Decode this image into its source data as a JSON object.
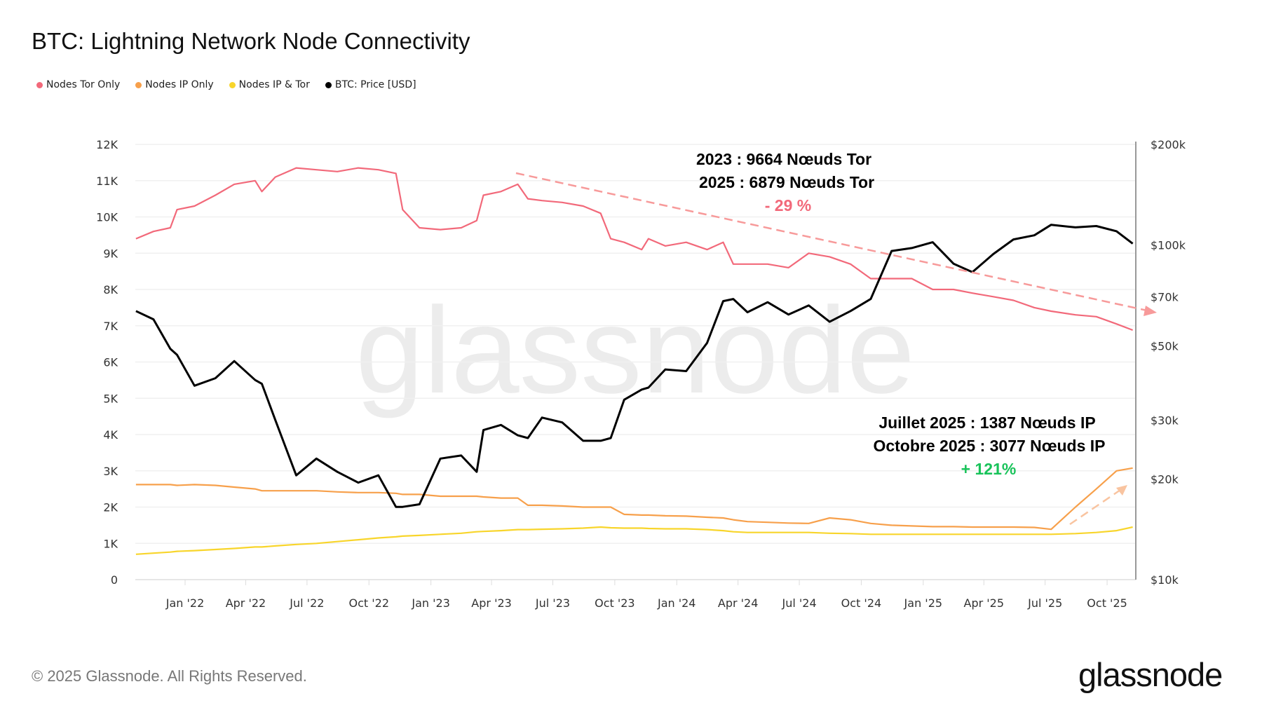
{
  "title": "BTC: Lightning Network Node Connectivity",
  "footer": "© 2025 Glassnode. All Rights Reserved.",
  "logo": "glassnode",
  "watermark": "glassnode",
  "chart_data": {
    "type": "line",
    "title": "BTC: Lightning Network Node Connectivity",
    "legend_position": "top-left",
    "grid": true,
    "x_ticks": [
      "Jan '22",
      "Apr '22",
      "Jul '22",
      "Oct '22",
      "Jan '23",
      "Apr '23",
      "Jul '23",
      "Oct '23",
      "Jan '24",
      "Apr '24",
      "Jul '24",
      "Oct '24",
      "Jan '25",
      "Apr '25",
      "Jul '25",
      "Oct '25"
    ],
    "y_left": {
      "ylim": [
        0,
        12000
      ],
      "ticks": [
        "0",
        "1K",
        "2K",
        "3K",
        "4K",
        "5K",
        "6K",
        "7K",
        "8K",
        "9K",
        "10K",
        "11K",
        "12K"
      ]
    },
    "y_right": {
      "scale": "log",
      "ylim": [
        10000,
        200000
      ],
      "ticks": [
        {
          "v": 10000,
          "label": "$10k"
        },
        {
          "v": 20000,
          "label": "$20k"
        },
        {
          "v": 30000,
          "label": "$30k"
        },
        {
          "v": 50000,
          "label": "$50k"
        },
        {
          "v": 70000,
          "label": "$70k"
        },
        {
          "v": 100000,
          "label": "$100k"
        },
        {
          "v": 200000,
          "label": "$200k"
        }
      ]
    },
    "x": [
      "2021-10-20",
      "2021-11-15",
      "2021-12-10",
      "2021-12-20",
      "2022-01-15",
      "2022-02-15",
      "2022-03-15",
      "2022-04-15",
      "2022-04-25",
      "2022-05-15",
      "2022-06-15",
      "2022-07-15",
      "2022-08-15",
      "2022-09-15",
      "2022-10-15",
      "2022-11-10",
      "2022-11-20",
      "2022-12-15",
      "2023-01-15",
      "2023-02-15",
      "2023-03-10",
      "2023-03-20",
      "2023-04-15",
      "2023-05-10",
      "2023-05-25",
      "2023-06-15",
      "2023-07-15",
      "2023-08-15",
      "2023-09-10",
      "2023-09-25",
      "2023-10-15",
      "2023-11-10",
      "2023-11-20",
      "2023-12-15",
      "2024-01-15",
      "2024-02-15",
      "2024-03-10",
      "2024-03-25",
      "2024-04-15",
      "2024-05-15",
      "2024-06-15",
      "2024-07-15",
      "2024-08-15",
      "2024-09-15",
      "2024-10-15",
      "2024-11-15",
      "2024-12-15",
      "2025-01-15",
      "2025-02-15",
      "2025-03-15",
      "2025-04-15",
      "2025-05-15",
      "2025-06-15",
      "2025-07-10",
      "2025-08-15",
      "2025-09-15",
      "2025-10-15",
      "2025-11-08"
    ],
    "series": [
      {
        "name": "Nodes Tor Only",
        "color": "#f2697a",
        "axis": "left",
        "values": [
          9400,
          9600,
          9700,
          10200,
          10300,
          10600,
          10900,
          11000,
          10700,
          11100,
          11350,
          11300,
          11250,
          11350,
          11300,
          11200,
          10200,
          9700,
          9650,
          9700,
          9900,
          10600,
          10700,
          10900,
          10500,
          10450,
          10400,
          10300,
          10100,
          9400,
          9300,
          9100,
          9400,
          9200,
          9300,
          9100,
          9300,
          8700,
          8700,
          8700,
          8600,
          9000,
          8900,
          8700,
          8300,
          8300,
          8300,
          8000,
          8000,
          7900,
          7800,
          7700,
          7500,
          7400,
          7300,
          7250,
          7050,
          6879
        ]
      },
      {
        "name": "Nodes IP Only",
        "color": "#f7a04b",
        "axis": "left",
        "values": [
          2620,
          2620,
          2620,
          2600,
          2620,
          2600,
          2550,
          2500,
          2450,
          2450,
          2450,
          2450,
          2420,
          2400,
          2400,
          2380,
          2350,
          2350,
          2300,
          2300,
          2300,
          2280,
          2250,
          2250,
          2050,
          2050,
          2030,
          2000,
          2000,
          2000,
          1800,
          1780,
          1780,
          1760,
          1750,
          1720,
          1700,
          1650,
          1600,
          1580,
          1560,
          1550,
          1700,
          1650,
          1550,
          1500,
          1480,
          1460,
          1460,
          1450,
          1450,
          1450,
          1440,
          1387,
          2000,
          2500,
          3000,
          3077
        ]
      },
      {
        "name": "Nodes IP & Tor",
        "color": "#f8d52b",
        "axis": "left",
        "values": [
          700,
          730,
          760,
          780,
          800,
          830,
          860,
          900,
          900,
          930,
          970,
          1000,
          1050,
          1100,
          1150,
          1180,
          1200,
          1220,
          1250,
          1280,
          1320,
          1330,
          1350,
          1380,
          1380,
          1390,
          1400,
          1420,
          1450,
          1430,
          1420,
          1420,
          1410,
          1400,
          1400,
          1380,
          1350,
          1320,
          1300,
          1300,
          1300,
          1300,
          1280,
          1270,
          1250,
          1250,
          1250,
          1250,
          1250,
          1250,
          1250,
          1250,
          1250,
          1250,
          1270,
          1300,
          1350,
          1450
        ]
      },
      {
        "name": "BTC: Price [USD]",
        "color": "#000000",
        "axis": "right",
        "values": [
          63500,
          60000,
          49000,
          47000,
          38000,
          40000,
          45000,
          39500,
          38500,
          30000,
          20500,
          23000,
          21000,
          19500,
          20500,
          16500,
          16500,
          16800,
          23000,
          23500,
          21000,
          28000,
          29000,
          27000,
          26500,
          30500,
          29500,
          26000,
          26000,
          26500,
          34500,
          37000,
          37500,
          42500,
          42000,
          51000,
          68000,
          69000,
          63000,
          67500,
          62000,
          66000,
          59000,
          63500,
          69000,
          96000,
          98000,
          102000,
          88000,
          83000,
          94000,
          104000,
          107000,
          115000,
          113000,
          114000,
          110000,
          101000
        ]
      }
    ],
    "annotations": {
      "tor_line1": "2023 : 9664 Nœuds Tor",
      "tor_line2": "2025 : 6879 Nœuds Tor",
      "tor_change": "- 29 %",
      "ip_line1": "Juillet 2025 : 1387 Nœuds IP",
      "ip_line2": "Octobre 2025 : 3077 Nœuds IP",
      "ip_change": "+ 121%",
      "negative_color": "#f2697a",
      "positive_color": "#19c35a"
    }
  }
}
